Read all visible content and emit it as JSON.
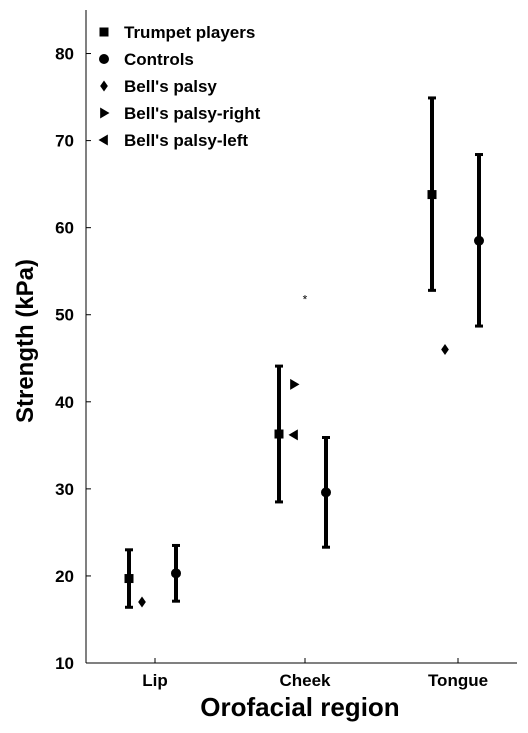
{
  "chart_data": {
    "type": "scatter",
    "xlabel": "Orofacial region",
    "ylabel": "Strength (kPa)",
    "categories": [
      "Lip",
      "Cheek",
      "Tongue"
    ],
    "ylim": [
      10,
      85
    ],
    "yticks": [
      10,
      20,
      30,
      40,
      50,
      60,
      70,
      80
    ],
    "grid": false,
    "legend_position": "top-left",
    "legend": [
      {
        "label": "Trumpet players",
        "marker": "square"
      },
      {
        "label": "Controls",
        "marker": "circle"
      },
      {
        "label": "Bell's palsy",
        "marker": "diamond"
      },
      {
        "label": "Bell's palsy-right",
        "marker": "triangle-right"
      },
      {
        "label": "Bell's palsy-left",
        "marker": "triangle-left"
      }
    ],
    "series": [
      {
        "name": "Trumpet players",
        "marker": "square",
        "points": [
          {
            "category": "Lip",
            "mean": 19.7,
            "lower": 16.4,
            "upper": 23.0
          },
          {
            "category": "Cheek",
            "mean": 36.3,
            "lower": 28.5,
            "upper": 44.1
          },
          {
            "category": "Tongue",
            "mean": 63.8,
            "lower": 52.8,
            "upper": 74.9
          }
        ]
      },
      {
        "name": "Controls",
        "marker": "circle",
        "points": [
          {
            "category": "Lip",
            "mean": 20.3,
            "lower": 17.1,
            "upper": 23.5
          },
          {
            "category": "Cheek",
            "mean": 29.6,
            "lower": 23.3,
            "upper": 35.9
          },
          {
            "category": "Tongue",
            "mean": 58.5,
            "lower": 48.7,
            "upper": 68.4
          }
        ]
      },
      {
        "name": "Bell's palsy",
        "marker": "diamond",
        "points": [
          {
            "category": "Lip",
            "value": 17.0
          },
          {
            "category": "Tongue",
            "value": 46.0
          }
        ]
      },
      {
        "name": "Bell's palsy-right",
        "marker": "triangle-right",
        "points": [
          {
            "category": "Cheek",
            "value": 42.0
          }
        ]
      },
      {
        "name": "Bell's palsy-left",
        "marker": "triangle-left",
        "points": [
          {
            "category": "Cheek",
            "value": 36.2
          }
        ]
      }
    ],
    "annotations": [
      {
        "text": "*",
        "category": "Cheek",
        "value": 52.0
      }
    ]
  }
}
